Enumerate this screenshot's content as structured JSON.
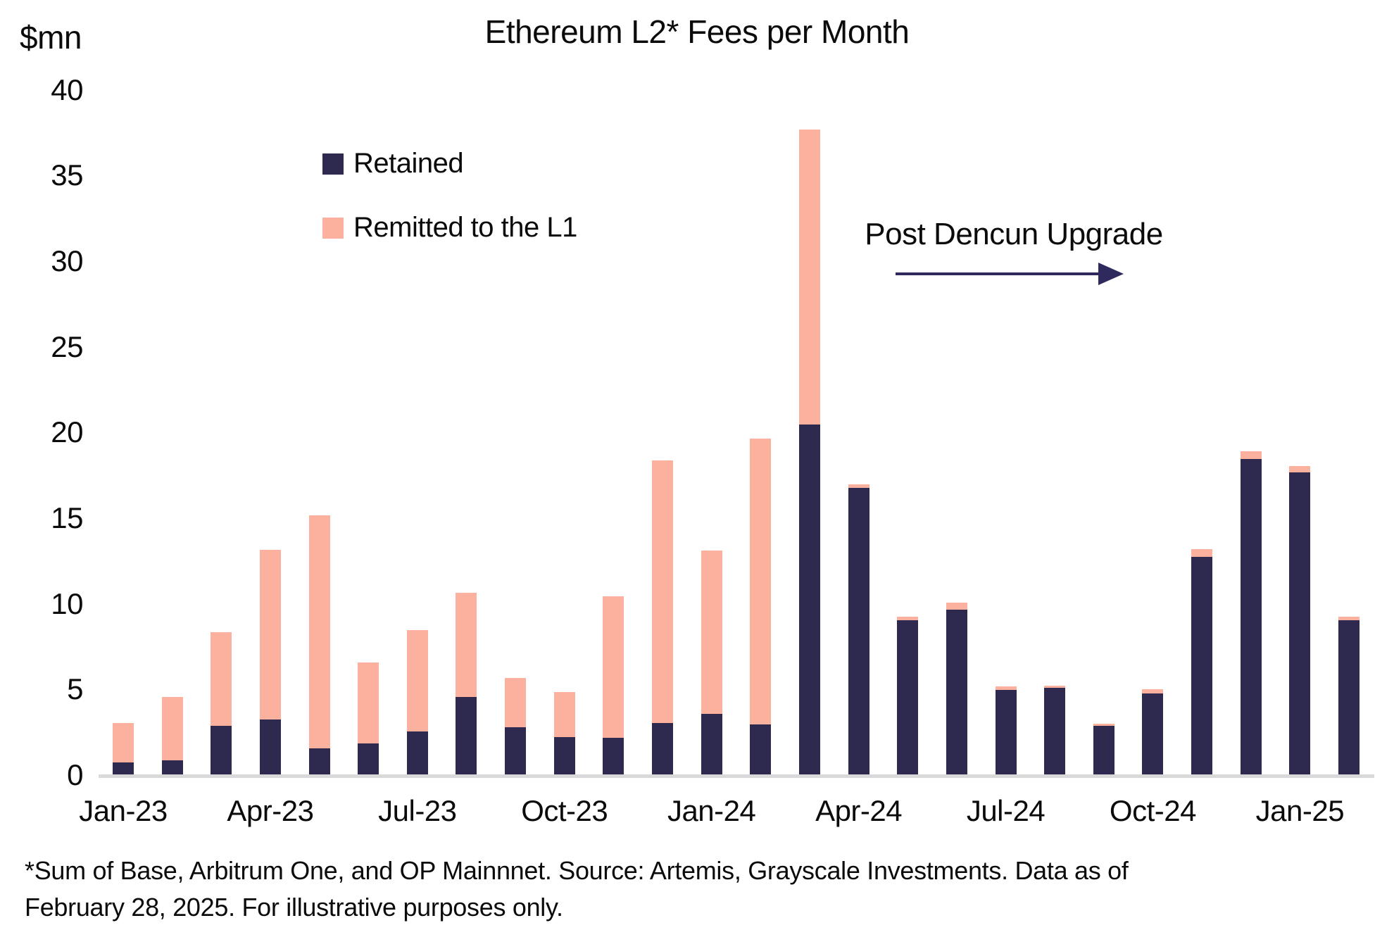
{
  "title": "Ethereum L2* Fees per Month",
  "y_axis_unit": "$mn",
  "legend": {
    "retained_label": "Retained",
    "remitted_label": "Remitted to the L1"
  },
  "annotation": {
    "text": "Post Dencun Upgrade"
  },
  "footnote_line1": "*Sum of Base, Arbitrum One, and OP Mainnnet. Source: Artemis, Grayscale Investments. Data as of",
  "footnote_line2": "February 28, 2025. For illustrative purposes only.",
  "colors": {
    "retained": "#2E2A4F",
    "remitted": "#FBB19D",
    "axis": "#D9D9D9",
    "arrow": "#2E2A5E"
  },
  "chart_data": {
    "type": "bar",
    "stacked": true,
    "title": "Ethereum L2* Fees per Month",
    "ylabel": "$mn",
    "ylim": [
      0,
      40
    ],
    "y_ticks": [
      0,
      5,
      10,
      15,
      20,
      25,
      30,
      35,
      40
    ],
    "grid": false,
    "legend_position": "upper-left-inside",
    "categories": [
      "Jan-23",
      "Feb-23",
      "Mar-23",
      "Apr-23",
      "May-23",
      "Jun-23",
      "Jul-23",
      "Aug-23",
      "Sep-23",
      "Oct-23",
      "Nov-23",
      "Dec-23",
      "Jan-24",
      "Feb-24",
      "Mar-24",
      "Apr-24",
      "May-24",
      "Jun-24",
      "Jul-24",
      "Aug-24",
      "Sep-24",
      "Oct-24",
      "Nov-24",
      "Dec-24",
      "Jan-25",
      "Feb-25"
    ],
    "x_tick_labels": [
      "Jan-23",
      "Apr-23",
      "Jul-23",
      "Oct-23",
      "Jan-24",
      "Apr-24",
      "Jul-24",
      "Oct-24",
      "Jan-25"
    ],
    "x_tick_step_months": 3,
    "series": [
      {
        "name": "Retained",
        "values": [
          0.8,
          0.9,
          2.9,
          3.3,
          1.6,
          1.9,
          2.6,
          4.6,
          2.85,
          2.25,
          2.2,
          3.1,
          3.6,
          3.0,
          20.5,
          16.8,
          9.1,
          9.7,
          5.0,
          5.15,
          2.9,
          4.8,
          12.8,
          18.5,
          17.7,
          9.1
        ]
      },
      {
        "name": "Remitted to the L1",
        "values": [
          2.3,
          3.7,
          5.5,
          9.9,
          13.6,
          4.7,
          5.9,
          6.1,
          2.85,
          2.65,
          8.3,
          15.3,
          9.55,
          16.7,
          17.25,
          0.2,
          0.2,
          0.4,
          0.2,
          0.1,
          0.15,
          0.25,
          0.45,
          0.45,
          0.4,
          0.2
        ]
      }
    ],
    "annotation_text": "Post Dencun Upgrade"
  }
}
